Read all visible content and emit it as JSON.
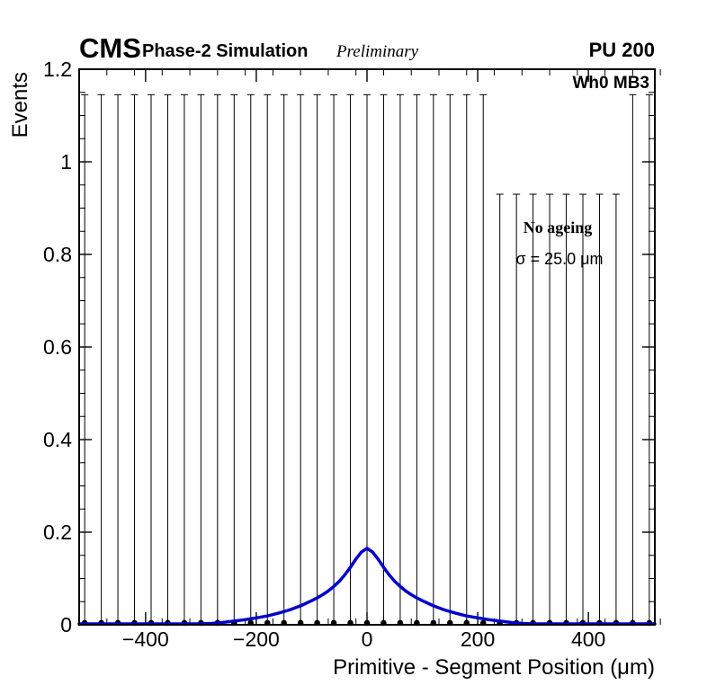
{
  "header": {
    "experiment": "CMS",
    "label": "Phase-2 Simulation",
    "sublabel": "Preliminary",
    "right_label": "PU 200"
  },
  "plot": {
    "inner_label": "Wh0 MB3",
    "legend": {
      "line1": "No ageing",
      "line2": "σ = 25.0 μm"
    }
  },
  "chart_data": {
    "type": "line",
    "title": "",
    "xlabel": "Primitive - Segment Position (μm)",
    "ylabel": "Events",
    "xlim": [
      -520,
      520
    ],
    "ylim": [
      0,
      1.2
    ],
    "grid": false,
    "legend_position": "upper-right-inside",
    "x_major_ticks": [
      -400,
      -200,
      0,
      200,
      400
    ],
    "x_tick_labels": [
      "−400",
      "−200",
      "0",
      "200",
      "400"
    ],
    "x_minor_step": 50,
    "y_major_ticks": [
      0,
      0.2,
      0.4,
      0.6,
      0.8,
      1,
      1.2
    ],
    "y_tick_labels": [
      "0",
      "0.2",
      "0.4",
      "0.6",
      "0.8",
      "1",
      "1.2"
    ],
    "y_minor_step": 0.05,
    "colors": {
      "fit_line": "#0000cc",
      "data_points": "#000000",
      "frame": "#000000"
    },
    "data_points": {
      "marker": "filled-circle",
      "y": 0.004,
      "y_err_low": 0,
      "x": [
        -510,
        -480,
        -450,
        -420,
        -390,
        -360,
        -330,
        -300,
        -270,
        -240,
        -210,
        -180,
        -150,
        -120,
        -90,
        -60,
        -30,
        0,
        30,
        60,
        90,
        120,
        150,
        180,
        210,
        240,
        270,
        300,
        330,
        360,
        390,
        420,
        450,
        480,
        510
      ],
      "y_err_high": [
        1.145,
        1.145,
        1.145,
        1.145,
        1.145,
        1.145,
        1.145,
        1.145,
        1.145,
        1.145,
        1.145,
        1.145,
        1.145,
        1.145,
        1.145,
        1.145,
        1.145,
        1.145,
        1.145,
        1.145,
        1.145,
        1.145,
        1.145,
        1.145,
        1.145,
        0.93,
        0.93,
        0.93,
        0.93,
        0.93,
        0.93,
        0.93,
        0.93,
        1.145,
        1.145
      ]
    },
    "fit_curve": {
      "name": "resolution-fit",
      "peak_x": 0,
      "peak_y": 0.165,
      "sigma_um": 25.0,
      "points": [
        [
          -520,
          0.002
        ],
        [
          -460,
          0.002
        ],
        [
          -400,
          0.002
        ],
        [
          -360,
          0.002
        ],
        [
          -330,
          0.002
        ],
        [
          -300,
          0.002
        ],
        [
          -280,
          0.003
        ],
        [
          -260,
          0.005
        ],
        [
          -240,
          0.008
        ],
        [
          -220,
          0.011
        ],
        [
          -200,
          0.015
        ],
        [
          -180,
          0.019
        ],
        [
          -160,
          0.025
        ],
        [
          -140,
          0.032
        ],
        [
          -120,
          0.041
        ],
        [
          -100,
          0.052
        ],
        [
          -90,
          0.058
        ],
        [
          -80,
          0.065
        ],
        [
          -70,
          0.073
        ],
        [
          -60,
          0.083
        ],
        [
          -50,
          0.094
        ],
        [
          -40,
          0.108
        ],
        [
          -30,
          0.124
        ],
        [
          -20,
          0.142
        ],
        [
          -10,
          0.157
        ],
        [
          0,
          0.165
        ],
        [
          10,
          0.157
        ],
        [
          20,
          0.142
        ],
        [
          30,
          0.124
        ],
        [
          40,
          0.108
        ],
        [
          50,
          0.094
        ],
        [
          60,
          0.083
        ],
        [
          70,
          0.073
        ],
        [
          80,
          0.065
        ],
        [
          90,
          0.058
        ],
        [
          100,
          0.052
        ],
        [
          120,
          0.041
        ],
        [
          140,
          0.032
        ],
        [
          160,
          0.025
        ],
        [
          180,
          0.019
        ],
        [
          200,
          0.015
        ],
        [
          220,
          0.011
        ],
        [
          240,
          0.008
        ],
        [
          260,
          0.005
        ],
        [
          280,
          0.003
        ],
        [
          300,
          0.002
        ],
        [
          330,
          0.002
        ],
        [
          360,
          0.002
        ],
        [
          400,
          0.002
        ],
        [
          460,
          0.002
        ],
        [
          520,
          0.002
        ]
      ]
    }
  }
}
